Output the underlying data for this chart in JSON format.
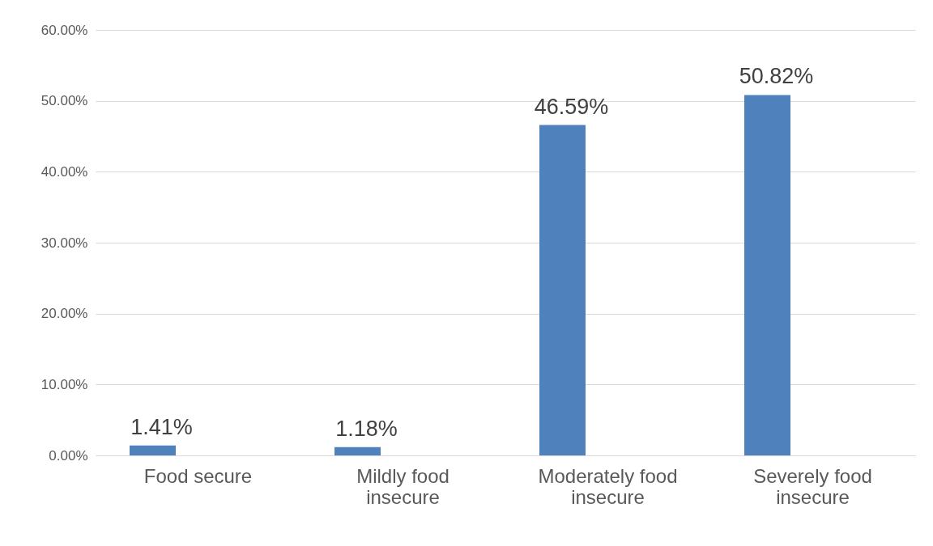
{
  "chart_data": {
    "type": "bar",
    "categories": [
      "Food secure",
      "Mildly food insecure",
      "Moderately food insecure",
      "Severely food insecure"
    ],
    "series": [
      {
        "color": "#4f81bd",
        "values": [
          1.41,
          1.18,
          46.59,
          50.82
        ]
      }
    ],
    "value_labels": [
      "1.41%",
      "1.18%",
      "46.59%",
      "50.82%"
    ],
    "ylim": [
      0,
      60
    ],
    "yticks": [
      {
        "value": 0,
        "label": "0.00%"
      },
      {
        "value": 10,
        "label": "10.00%"
      },
      {
        "value": 20,
        "label": "20.00%"
      },
      {
        "value": 30,
        "label": "30.00%"
      },
      {
        "value": 40,
        "label": "40.00%"
      },
      {
        "value": 50,
        "label": "50.00%"
      },
      {
        "value": 60,
        "label": "60.00%"
      }
    ],
    "grid": "y"
  }
}
